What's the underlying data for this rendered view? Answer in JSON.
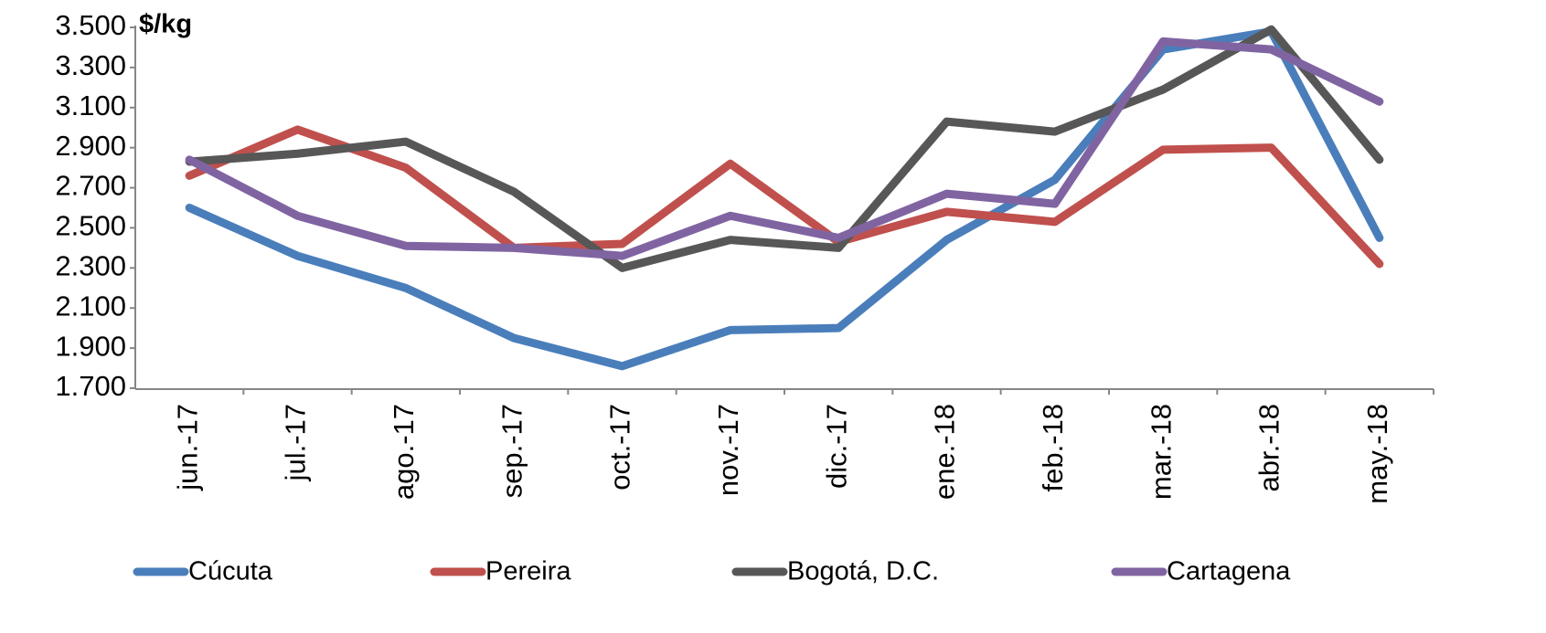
{
  "chart_data": {
    "type": "line",
    "y_label": "$/kg",
    "categories": [
      "jun.-17",
      "jul.-17",
      "ago.-17",
      "sep.-17",
      "oct.-17",
      "nov.-17",
      "dic.-17",
      "ene.-18",
      "feb.-18",
      "mar.-18",
      "abr.-18",
      "may.-18"
    ],
    "series": [
      {
        "name": "Cúcuta",
        "color": "#4a7ebb",
        "values": [
          2600,
          2360,
          2200,
          1950,
          1810,
          1990,
          2000,
          2440,
          2740,
          3390,
          3480,
          2450
        ]
      },
      {
        "name": "Pereira",
        "color": "#c0504d",
        "values": [
          2760,
          2990,
          2800,
          2400,
          2420,
          2820,
          2430,
          2580,
          2530,
          2890,
          2900,
          2320
        ]
      },
      {
        "name": "Bogotá, D.C.",
        "color": "#575757",
        "values": [
          2830,
          2870,
          2930,
          2680,
          2300,
          2440,
          2400,
          3030,
          2980,
          3190,
          3490,
          2840
        ]
      },
      {
        "name": "Cartagena",
        "color": "#8064a2",
        "values": [
          2840,
          2560,
          2410,
          2400,
          2360,
          2560,
          2450,
          2670,
          2620,
          3430,
          3390,
          3130
        ]
      }
    ],
    "ylim": [
      1700,
      3500
    ],
    "yticks": [
      {
        "value": 1700,
        "label": "1.700"
      },
      {
        "value": 1900,
        "label": "1.900"
      },
      {
        "value": 2100,
        "label": "2.100"
      },
      {
        "value": 2300,
        "label": "2.300"
      },
      {
        "value": 2500,
        "label": "2.500"
      },
      {
        "value": 2700,
        "label": "2.700"
      },
      {
        "value": 2900,
        "label": "2.900"
      },
      {
        "value": 3100,
        "label": "3.100"
      },
      {
        "value": 3300,
        "label": "3.300"
      },
      {
        "value": 3500,
        "label": "3.500"
      }
    ],
    "grid": false
  }
}
